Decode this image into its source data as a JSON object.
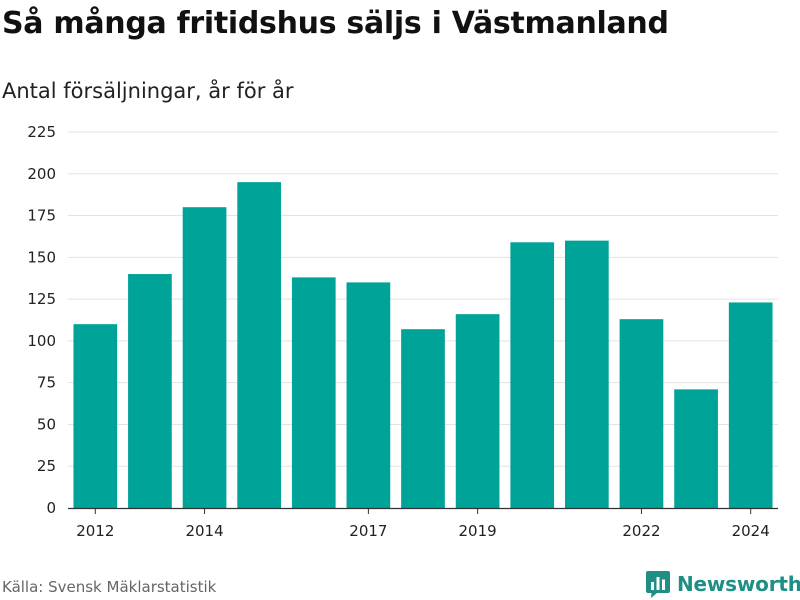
{
  "header": {
    "title": "Så många fritidshus säljs i Västmanland",
    "subtitle": "Antal försäljningar, år för år"
  },
  "footer": {
    "source": "Källa: Svensk Mäklarstatistik",
    "brand": "Newsworthy",
    "brand_icon": "bar-chart-icon"
  },
  "colors": {
    "bar": "#00a397",
    "brand": "#1f8f86",
    "grid": "#e3e3e3",
    "axis": "#333333"
  },
  "chart_data": {
    "type": "bar",
    "title": "Så många fritidshus säljs i Västmanland",
    "subtitle": "Antal försäljningar, år för år",
    "xlabel": "",
    "ylabel": "",
    "categories": [
      "2012",
      "2013",
      "2014",
      "2015",
      "2016",
      "2017",
      "2018",
      "2019",
      "2020",
      "2021",
      "2022",
      "2023",
      "2024"
    ],
    "values": [
      110,
      140,
      180,
      195,
      138,
      135,
      107,
      116,
      159,
      160,
      113,
      71,
      123
    ],
    "ylim": [
      0,
      225
    ],
    "yticks": [
      0,
      25,
      50,
      75,
      100,
      125,
      150,
      175,
      200,
      225
    ],
    "xtick_labels": [
      "2012",
      "2014",
      "2017",
      "2019",
      "2022",
      "2024"
    ],
    "grid": true,
    "legend": "none"
  }
}
